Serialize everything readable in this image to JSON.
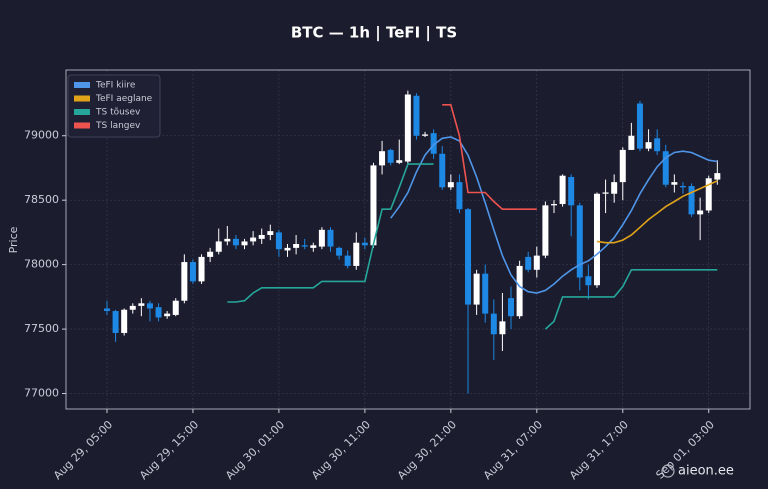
{
  "chart_data": {
    "type": "candlestick",
    "title": "BTC — 1h  |  TeFI  |  TS",
    "ylabel": "Price",
    "x": [
      "Aug 29, 05:00",
      "Aug 29, 06:00",
      "Aug 29, 07:00",
      "Aug 29, 08:00",
      "Aug 29, 09:00",
      "Aug 29, 10:00",
      "Aug 29, 11:00",
      "Aug 29, 12:00",
      "Aug 29, 13:00",
      "Aug 29, 14:00",
      "Aug 29, 15:00",
      "Aug 29, 16:00",
      "Aug 29, 17:00",
      "Aug 29, 18:00",
      "Aug 29, 19:00",
      "Aug 29, 20:00",
      "Aug 29, 21:00",
      "Aug 29, 22:00",
      "Aug 29, 23:00",
      "Aug 30, 00:00",
      "Aug 30, 01:00",
      "Aug 30, 02:00",
      "Aug 30, 03:00",
      "Aug 30, 04:00",
      "Aug 30, 05:00",
      "Aug 30, 06:00",
      "Aug 30, 07:00",
      "Aug 30, 08:00",
      "Aug 30, 09:00",
      "Aug 30, 10:00",
      "Aug 30, 11:00",
      "Aug 30, 12:00",
      "Aug 30, 13:00",
      "Aug 30, 14:00",
      "Aug 30, 15:00",
      "Aug 30, 16:00",
      "Aug 30, 17:00",
      "Aug 30, 18:00",
      "Aug 30, 19:00",
      "Aug 30, 20:00",
      "Aug 30, 21:00",
      "Aug 30, 22:00",
      "Aug 30, 23:00",
      "Aug 31, 00:00",
      "Aug 31, 01:00",
      "Aug 31, 02:00",
      "Aug 31, 03:00",
      "Aug 31, 04:00",
      "Aug 31, 05:00",
      "Aug 31, 06:00",
      "Aug 31, 07:00",
      "Aug 31, 08:00",
      "Aug 31, 09:00",
      "Aug 31, 10:00",
      "Aug 31, 11:00",
      "Aug 31, 12:00",
      "Aug 31, 13:00",
      "Aug 31, 14:00",
      "Aug 31, 15:00",
      "Aug 31, 16:00",
      "Aug 31, 17:00",
      "Aug 31, 18:00",
      "Aug 31, 19:00",
      "Aug 31, 20:00",
      "Aug 31, 21:00",
      "Aug 31, 22:00",
      "Aug 31, 23:00",
      "Sep 01, 00:00",
      "Sep 01, 01:00",
      "Sep 01, 02:00",
      "Sep 01, 03:00",
      "Sep 01, 04:00"
    ],
    "open": [
      77660,
      77640,
      77470,
      77650,
      77680,
      77700,
      77670,
      77600,
      77610,
      77720,
      78020,
      77870,
      78060,
      78100,
      78180,
      78200,
      78150,
      78180,
      78200,
      78230,
      78250,
      78110,
      78130,
      78150,
      78130,
      78140,
      78270,
      78130,
      78070,
      77990,
      78170,
      78150,
      78770,
      78890,
      78790,
      78800,
      79310,
      79000,
      79020,
      78860,
      78600,
      78640,
      78430,
      77690,
      77930,
      77620,
      77460,
      77740,
      77600,
      78060,
      77960,
      78070,
      78460,
      78470,
      78680,
      78460,
      77910,
      77840,
      78550,
      78550,
      78640,
      78890,
      79250,
      78900,
      78980,
      78880,
      78620,
      78610,
      78610,
      78390,
      78420,
      78660
    ],
    "high": [
      77720,
      77650,
      77660,
      77700,
      77740,
      77720,
      77700,
      77640,
      77740,
      78080,
      78040,
      78080,
      78130,
      78280,
      78300,
      78230,
      78200,
      78260,
      78280,
      78310,
      78270,
      78160,
      78230,
      78200,
      78170,
      78290,
      78290,
      78140,
      78110,
      78250,
      78210,
      78790,
      78960,
      78900,
      78970,
      79350,
      79330,
      79030,
      79050,
      78920,
      78700,
      78700,
      78440,
      77960,
      78000,
      77730,
      77780,
      77830,
      78030,
      78100,
      78140,
      78490,
      78500,
      78700,
      78700,
      78480,
      78000,
      78560,
      78660,
      78700,
      78910,
      79100,
      79270,
      79050,
      79050,
      78930,
      78700,
      78640,
      78630,
      78520,
      78690,
      78810
    ],
    "low": [
      77610,
      77400,
      77450,
      77620,
      77600,
      77560,
      77560,
      77580,
      77600,
      77700,
      77850,
      77850,
      78020,
      78080,
      78150,
      78120,
      78120,
      78150,
      78160,
      78190,
      78060,
      78060,
      78080,
      78120,
      78100,
      78120,
      78100,
      78040,
      77970,
      77960,
      78120,
      78130,
      78700,
      78770,
      78780,
      78780,
      78970,
      78990,
      78820,
      78580,
      78580,
      78400,
      77000,
      77610,
      77550,
      77260,
      77330,
      77500,
      77580,
      77940,
      77900,
      78050,
      78400,
      78450,
      78220,
      77800,
      77730,
      77820,
      78400,
      78480,
      78500,
      78890,
      78880,
      78880,
      78850,
      78600,
      78560,
      78550,
      78370,
      78190,
      78400,
      78620
    ],
    "close": [
      77640,
      77470,
      77650,
      77680,
      77700,
      77660,
      77590,
      77620,
      77720,
      78020,
      77870,
      78060,
      78100,
      78180,
      78200,
      78150,
      78180,
      78210,
      78230,
      78260,
      78120,
      78130,
      78160,
      78140,
      78150,
      78270,
      78140,
      78070,
      77990,
      78170,
      78150,
      78770,
      78880,
      78790,
      78810,
      79320,
      79000,
      79010,
      78860,
      78600,
      78640,
      78430,
      77690,
      77930,
      77620,
      77460,
      77560,
      77600,
      77990,
      77960,
      78070,
      78460,
      78470,
      78690,
      78460,
      77900,
      77840,
      78550,
      78560,
      78640,
      78890,
      79000,
      78900,
      78950,
      78880,
      78620,
      78640,
      78600,
      78390,
      78420,
      78670,
      78710
    ],
    "up_color": "#ffffff",
    "down_color": "#1e88e5",
    "series": [
      {
        "name": "TeFI kiire",
        "color": "#4f95e8",
        "values": [
          null,
          null,
          null,
          null,
          null,
          null,
          null,
          null,
          null,
          null,
          null,
          null,
          null,
          null,
          null,
          null,
          null,
          null,
          null,
          null,
          null,
          null,
          null,
          null,
          null,
          null,
          null,
          null,
          null,
          null,
          null,
          null,
          null,
          78360,
          78450,
          78560,
          78720,
          78850,
          78930,
          78980,
          78990,
          78960,
          78850,
          78680,
          78480,
          78270,
          78070,
          77920,
          77830,
          77790,
          77780,
          77800,
          77850,
          77910,
          77960,
          78000,
          78030,
          78080,
          78140,
          78210,
          78310,
          78420,
          78550,
          78660,
          78760,
          78830,
          78870,
          78880,
          78870,
          78840,
          78810,
          78800
        ]
      },
      {
        "name": "TeFI aeglane",
        "color": "#e0a219",
        "values": [
          null,
          null,
          null,
          null,
          null,
          null,
          null,
          null,
          null,
          null,
          null,
          null,
          null,
          null,
          null,
          null,
          null,
          null,
          null,
          null,
          null,
          null,
          null,
          null,
          null,
          null,
          null,
          null,
          null,
          null,
          null,
          null,
          null,
          null,
          null,
          null,
          null,
          null,
          null,
          null,
          null,
          null,
          null,
          null,
          null,
          null,
          null,
          null,
          null,
          null,
          null,
          null,
          null,
          null,
          null,
          null,
          null,
          78180,
          78170,
          78170,
          78190,
          78230,
          78290,
          78350,
          78400,
          78450,
          78490,
          78530,
          78560,
          78590,
          78620,
          78650
        ]
      },
      {
        "name": "TS tõusev",
        "color": "#26a69a",
        "values": [
          null,
          null,
          null,
          null,
          null,
          null,
          null,
          null,
          null,
          null,
          null,
          null,
          null,
          null,
          77710,
          77710,
          77720,
          77780,
          77820,
          77820,
          77820,
          77820,
          77820,
          77820,
          77820,
          77870,
          77870,
          77870,
          77870,
          77870,
          77870,
          78160,
          78430,
          78430,
          78600,
          78780,
          78780,
          78780,
          78780,
          null,
          null,
          null,
          null,
          null,
          null,
          null,
          null,
          null,
          null,
          null,
          null,
          77500,
          77560,
          77750,
          77750,
          77750,
          77750,
          77750,
          77750,
          77750,
          77830,
          77960,
          77960,
          77960,
          77960,
          77960,
          77960,
          77960,
          77960,
          77960,
          77960,
          77960
        ]
      },
      {
        "name": "TS langev",
        "color": "#ef5350",
        "values": [
          null,
          null,
          null,
          null,
          null,
          null,
          null,
          null,
          null,
          null,
          null,
          null,
          null,
          null,
          null,
          null,
          null,
          null,
          null,
          null,
          null,
          null,
          null,
          null,
          null,
          null,
          null,
          null,
          null,
          null,
          null,
          null,
          null,
          null,
          null,
          null,
          null,
          null,
          null,
          79240,
          79240,
          79000,
          78560,
          78560,
          78560,
          78490,
          78430,
          78430,
          78430,
          78430,
          78430,
          null,
          null,
          null,
          null,
          null,
          null,
          null,
          null,
          null,
          null,
          null,
          null,
          null,
          null,
          null,
          null,
          null,
          null,
          null,
          null,
          null
        ]
      }
    ],
    "xlim": [
      "Aug 29, 00:14",
      "Sep 01, 07:48"
    ],
    "xticks": [
      "Aug 29, 05:00",
      "Aug 29, 15:00",
      "Aug 30, 01:00",
      "Aug 30, 11:00",
      "Aug 30, 21:00",
      "Aug 31, 07:00",
      "Aug 31, 17:00",
      "Sep 01, 03:00"
    ],
    "ylim": [
      76880,
      79510
    ],
    "yticks": [
      77000,
      77500,
      78000,
      78500,
      79000
    ],
    "grid": true,
    "legend": "upper left"
  },
  "watermark": "aieon.ee"
}
